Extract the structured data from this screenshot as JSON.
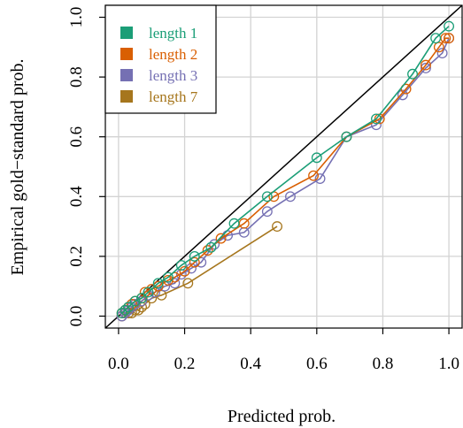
{
  "chart_data": {
    "type": "line",
    "xlabel": "Predicted prob.",
    "ylabel": "Empirical gold−standard prob.",
    "xlim": [
      -0.04,
      1.04
    ],
    "ylim": [
      -0.04,
      1.04
    ],
    "xticks": [
      "0.0",
      "0.2",
      "0.4",
      "0.6",
      "0.8",
      "1.0"
    ],
    "yticks": [
      "0.0",
      "0.2",
      "0.4",
      "0.6",
      "0.8",
      "1.0"
    ],
    "grid": true,
    "legend_position": "top-left",
    "reference_line": "y = x",
    "series": [
      {
        "name": "length 1",
        "color": "#1b9e77",
        "x": [
          0.01,
          0.02,
          0.03,
          0.05,
          0.07,
          0.09,
          0.12,
          0.15,
          0.19,
          0.23,
          0.28,
          0.35,
          0.45,
          0.6,
          0.69,
          0.78,
          0.89,
          0.96,
          1.0
        ],
        "y": [
          0.01,
          0.02,
          0.03,
          0.05,
          0.06,
          0.08,
          0.11,
          0.13,
          0.17,
          0.2,
          0.23,
          0.31,
          0.4,
          0.53,
          0.6,
          0.66,
          0.81,
          0.93,
          0.97
        ]
      },
      {
        "name": "length 2",
        "color": "#d95f02",
        "x": [
          0.01,
          0.02,
          0.03,
          0.04,
          0.05,
          0.07,
          0.08,
          0.1,
          0.12,
          0.15,
          0.17,
          0.2,
          0.23,
          0.27,
          0.31,
          0.38,
          0.47,
          0.59,
          0.69,
          0.79,
          0.87,
          0.93,
          0.97,
          0.99,
          1.0
        ],
        "y": [
          0.01,
          0.02,
          0.03,
          0.04,
          0.05,
          0.06,
          0.08,
          0.09,
          0.1,
          0.12,
          0.13,
          0.15,
          0.18,
          0.22,
          0.26,
          0.31,
          0.4,
          0.47,
          0.6,
          0.66,
          0.76,
          0.84,
          0.9,
          0.93,
          0.93
        ]
      },
      {
        "name": "length 3",
        "color": "#7570b3",
        "x": [
          0.01,
          0.02,
          0.03,
          0.04,
          0.05,
          0.07,
          0.09,
          0.11,
          0.14,
          0.17,
          0.19,
          0.22,
          0.25,
          0.29,
          0.33,
          0.38,
          0.45,
          0.52,
          0.61,
          0.69,
          0.78,
          0.86,
          0.93,
          0.98,
          1.0
        ],
        "y": [
          0.0,
          0.01,
          0.02,
          0.03,
          0.04,
          0.05,
          0.07,
          0.08,
          0.1,
          0.11,
          0.14,
          0.16,
          0.18,
          0.24,
          0.27,
          0.28,
          0.35,
          0.4,
          0.46,
          0.6,
          0.64,
          0.74,
          0.83,
          0.88,
          0.93
        ]
      },
      {
        "name": "length 7",
        "color": "#a6761d",
        "x": [
          0.01,
          0.02,
          0.03,
          0.04,
          0.05,
          0.06,
          0.07,
          0.08,
          0.1,
          0.13,
          0.21,
          0.48
        ],
        "y": [
          0.0,
          0.01,
          0.01,
          0.01,
          0.02,
          0.02,
          0.03,
          0.04,
          0.06,
          0.07,
          0.11,
          0.3
        ]
      }
    ]
  }
}
